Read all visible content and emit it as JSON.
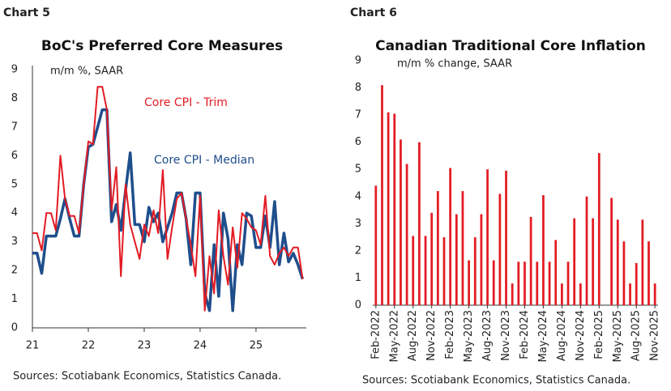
{
  "chart_data": [
    {
      "type": "line",
      "heading": "Chart 5",
      "title": "BoC's Preferred Core Measures",
      "subtitle": "m/m %, SAAR",
      "source": "Sources: Scotiabank Economics, Statistics Canada.",
      "x": [
        21,
        21.083,
        21.167,
        21.25,
        21.333,
        21.417,
        21.5,
        21.583,
        21.667,
        21.75,
        21.833,
        21.917,
        22,
        22.083,
        22.167,
        22.25,
        22.333,
        22.417,
        22.5,
        22.583,
        22.667,
        22.75,
        22.833,
        22.917,
        23,
        23.083,
        23.167,
        23.25,
        23.333,
        23.417,
        23.5,
        23.583,
        23.667,
        23.75,
        23.833,
        23.917,
        24,
        24.083,
        24.167,
        24.25,
        24.333,
        24.417,
        24.5,
        24.583,
        24.667,
        24.75,
        24.833,
        24.917,
        25,
        25.083,
        25.167,
        25.25,
        25.333,
        25.417,
        25.5,
        25.583,
        25.667,
        25.75,
        25.833
      ],
      "series": [
        {
          "name": "Core CPI - Trim",
          "color": "#e31b23",
          "values": [
            3.3,
            3.3,
            2.7,
            4.0,
            4.0,
            3.4,
            6.0,
            4.5,
            3.9,
            3.9,
            3.3,
            5.0,
            6.5,
            6.4,
            8.4,
            8.4,
            7.6,
            4.1,
            5.6,
            1.8,
            5.0,
            3.6,
            3.0,
            2.4,
            3.6,
            3.2,
            4.1,
            3.3,
            5.5,
            2.4,
            3.5,
            4.5,
            4.7,
            3.8,
            2.9,
            1.8,
            4.6,
            0.6,
            2.5,
            1.2,
            4.1,
            2.5,
            1.5,
            3.5,
            2.1,
            4.0,
            3.8,
            3.5,
            3.4,
            2.9,
            4.6,
            2.5,
            2.2,
            2.6,
            2.8,
            2.5,
            2.8,
            2.8,
            1.7
          ]
        },
        {
          "name": "Core CPI - Median",
          "color": "#1f4e8c",
          "values": [
            2.6,
            2.6,
            1.9,
            3.2,
            3.2,
            3.2,
            3.8,
            4.5,
            3.8,
            3.2,
            3.2,
            5.0,
            6.3,
            6.4,
            7.0,
            7.6,
            7.6,
            3.7,
            4.3,
            3.4,
            4.8,
            6.1,
            3.6,
            3.6,
            3.0,
            4.2,
            3.7,
            4.0,
            3.0,
            3.5,
            4.0,
            4.7,
            4.7,
            3.8,
            2.2,
            4.7,
            4.7,
            1.2,
            0.6,
            2.9,
            1.1,
            4.0,
            3.1,
            0.6,
            2.9,
            2.2,
            4.0,
            3.9,
            2.8,
            2.8,
            3.9,
            2.8,
            4.4,
            2.2,
            3.3,
            2.3,
            2.6,
            2.2,
            1.7
          ]
        }
      ],
      "xlim": [
        21,
        25.9
      ],
      "xticks": [
        21,
        22,
        23,
        24,
        25
      ],
      "ylim": [
        0,
        9
      ],
      "yticks": [
        0,
        1,
        2,
        3,
        4,
        5,
        6,
        7,
        8,
        9
      ],
      "grid": false
    },
    {
      "type": "bar",
      "heading": "Chart 6",
      "title": "Canadian Traditional Core Inflation",
      "subtitle": "m/m % change, SAAR",
      "source": "Sources: Scotiabank Economics, Statistics Canada.",
      "color": "#e31b23",
      "categories": [
        "Feb-2022",
        null,
        null,
        "May-2022",
        null,
        null,
        "Aug-2022",
        null,
        null,
        "Nov-2022",
        null,
        null,
        "Feb-2023",
        null,
        null,
        "May-2023",
        null,
        null,
        "Aug-2023",
        null,
        null,
        "Nov-2023",
        null,
        null,
        "Feb-2024",
        null,
        null,
        "May-2024",
        null,
        null,
        "Aug-2024",
        null,
        null,
        "Nov-2024",
        null,
        null,
        "Feb-2025",
        null,
        null,
        "May-2025",
        null,
        null,
        "Aug-2025",
        null,
        null,
        "Nov-2025"
      ],
      "values": [
        4.4,
        8.1,
        7.1,
        7.05,
        6.1,
        5.2,
        2.55,
        6.0,
        2.55,
        3.4,
        4.2,
        2.5,
        5.05,
        3.35,
        4.2,
        1.65,
        2.5,
        3.35,
        5.0,
        1.65,
        4.1,
        4.95,
        0.8,
        1.6,
        1.6,
        3.25,
        1.6,
        4.05,
        1.6,
        2.4,
        0.8,
        1.6,
        3.2,
        0.8,
        4.0,
        3.2,
        5.6,
        0,
        3.95,
        3.15,
        2.35,
        0.8,
        1.55,
        3.15,
        2.35,
        0.8
      ],
      "ylim": [
        0,
        9
      ],
      "yticks": [
        0,
        1,
        2,
        3,
        4,
        5,
        6,
        7,
        8,
        9
      ],
      "grid": false
    }
  ]
}
